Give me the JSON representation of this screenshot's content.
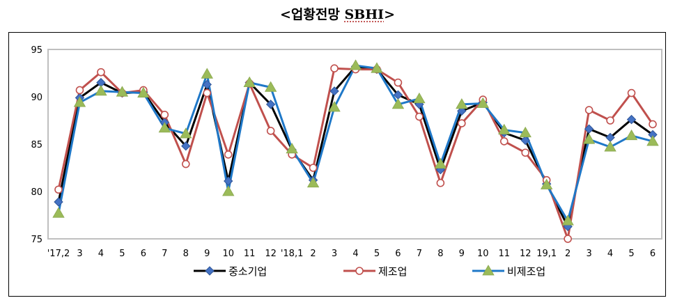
{
  "chart_data": {
    "type": "line",
    "title_prefix": "<업황전망 ",
    "title_brand": "SBHI",
    "title_suffix": ">",
    "xlabel": "",
    "ylabel": "",
    "ylim": [
      75,
      95
    ],
    "yticks": [
      75,
      80,
      85,
      90,
      95
    ],
    "grid": false,
    "legend": "bottom",
    "categories": [
      "'17,2",
      "3",
      "4",
      "5",
      "6",
      "7",
      "8",
      "9",
      "10",
      "11",
      "12",
      "'18,1",
      "2",
      "3",
      "4",
      "5",
      "6",
      "7",
      "8",
      "9",
      "10",
      "11",
      "12",
      "19,1",
      "2",
      "3",
      "4",
      "5",
      "6"
    ],
    "series": [
      {
        "name": "중소기업",
        "color": "#000000",
        "marker": "diamond",
        "marker_color": "#4472c4",
        "values": [
          78.9,
          89.9,
          91.5,
          90.4,
          90.5,
          87.3,
          84.8,
          91.3,
          81.1,
          91.5,
          89.2,
          84.4,
          81.2,
          90.6,
          93.2,
          92.9,
          90.2,
          89.2,
          82.3,
          88.5,
          89.4,
          86.2,
          85.4,
          80.8,
          76.3,
          86.6,
          85.7,
          87.6,
          86.0
        ]
      },
      {
        "name": "제조업",
        "color": "#c0504d",
        "marker": "circle",
        "marker_color": "#ffffff",
        "values": [
          80.2,
          90.7,
          92.6,
          90.4,
          90.7,
          88.1,
          82.9,
          90.4,
          83.9,
          91.4,
          86.4,
          83.9,
          82.5,
          93.0,
          92.9,
          92.9,
          91.5,
          87.9,
          80.9,
          87.2,
          89.7,
          85.3,
          84.1,
          81.2,
          75.0,
          88.6,
          87.5,
          90.4,
          87.1
        ]
      },
      {
        "name": "비제조업",
        "color": "#1f78c8",
        "marker": "triangle",
        "marker_color": "#9bbb59",
        "values": [
          77.7,
          89.4,
          90.6,
          90.5,
          90.4,
          86.7,
          86.1,
          92.4,
          80.0,
          91.5,
          91.0,
          84.5,
          80.9,
          88.9,
          93.3,
          93.0,
          89.2,
          89.8,
          82.9,
          89.2,
          89.3,
          86.5,
          86.2,
          80.7,
          76.9,
          85.5,
          84.7,
          85.9,
          85.3
        ]
      }
    ]
  }
}
